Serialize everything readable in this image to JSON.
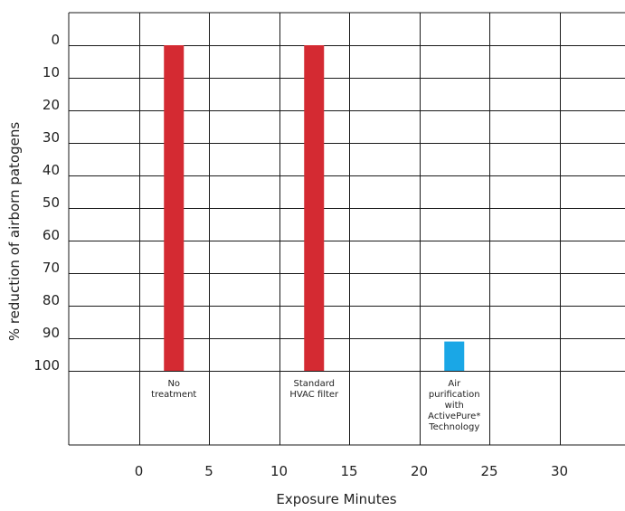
{
  "chart_data": {
    "type": "bar",
    "title": "",
    "xlabel": "Exposure Minutes",
    "ylabel": "% reduction of airborn patogens",
    "y_inverted": true,
    "ylim": [
      0,
      100
    ],
    "y_ticks": [
      0,
      10,
      20,
      30,
      40,
      50,
      60,
      70,
      80,
      90,
      100
    ],
    "x_ticks": [
      0,
      5,
      10,
      15,
      20,
      25,
      30
    ],
    "grid": true,
    "bars": [
      {
        "label_lines": [
          "No",
          "treatment"
        ],
        "x": 2.5,
        "value": 0,
        "color": "#d42a32"
      },
      {
        "label_lines": [
          "Standard",
          "HVAC filter"
        ],
        "x": 12.5,
        "value": 0,
        "color": "#d42a32"
      },
      {
        "label_lines": [
          "Air",
          "purification",
          "with",
          "ActivePure*",
          "Technology"
        ],
        "x": 22.5,
        "value": 91,
        "color": "#1aa7e6"
      }
    ]
  }
}
